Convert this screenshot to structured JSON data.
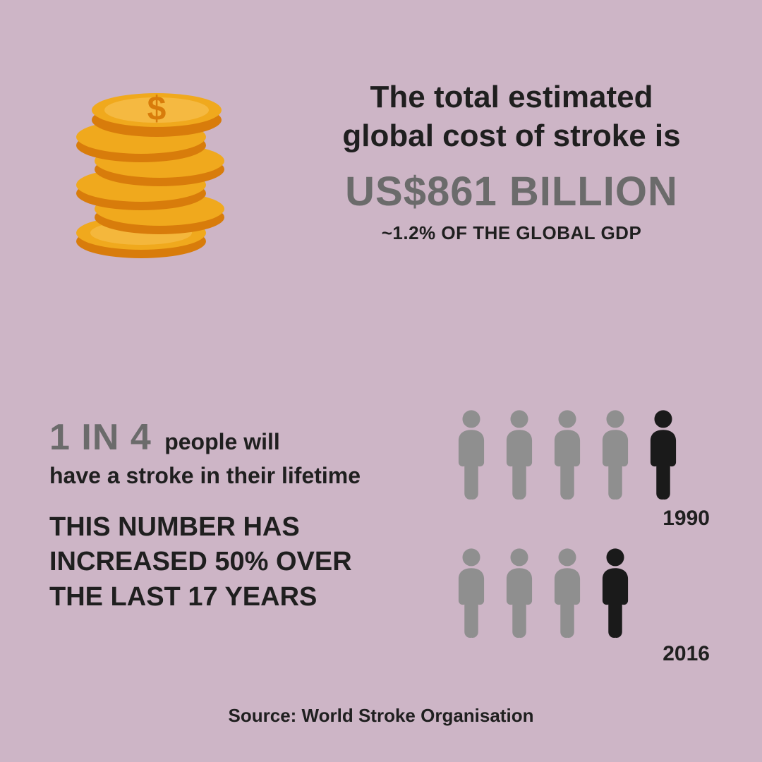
{
  "colors": {
    "background": "#cdb5c6",
    "text_dark": "#1f1f1f",
    "text_grey": "#6b6b6b",
    "coin_fill": "#f0a91d",
    "coin_edge": "#d87c0b",
    "coin_highlight": "#fcd178",
    "person_grey": "#8f8f8f",
    "person_dark": "#1a1a1a"
  },
  "top": {
    "line1": "The total estimated",
    "line2": "global cost of stroke is",
    "amount": "US$861 BILLION",
    "gdp": "~1.2% OF THE GLOBAL GDP"
  },
  "stats": {
    "ratio_big": "1 IN 4",
    "ratio_rest": "people will",
    "lifetime": "have a stroke in their lifetime",
    "increase_l1": "THIS NUMBER HAS",
    "increase_l2": "INCREASED 50% OVER",
    "increase_l3": "THE LAST 17 YEARS"
  },
  "people": {
    "row1": {
      "total": 5,
      "highlighted_index": 4,
      "year": "1990"
    },
    "row2": {
      "total": 4,
      "highlighted_index": 3,
      "year": "2016"
    }
  },
  "source": "Source: World Stroke Organisation"
}
